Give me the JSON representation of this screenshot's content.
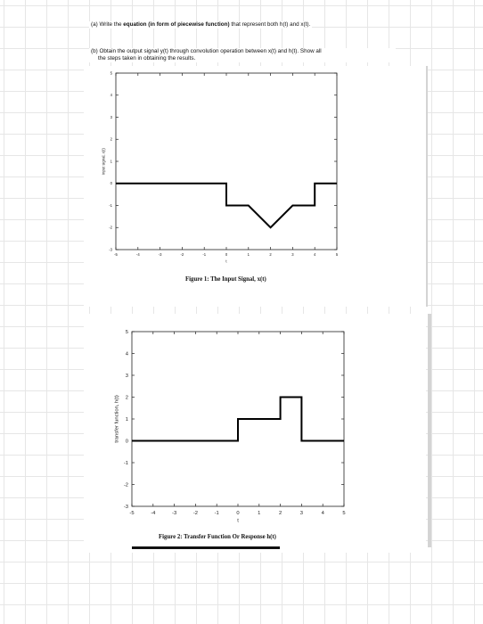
{
  "questions": {
    "a": {
      "prefix": "(a) Write the ",
      "bold": "equation (in form of piecewise function)",
      "suffix": " that represent both h(t) and x(t)."
    },
    "b": {
      "line1": "(b) Obtain the output signal y(t) through convolution operation between x(t) and h(t). Show all",
      "line2": "the steps taken in obtaining the results."
    }
  },
  "chart_data": [
    {
      "type": "line",
      "title": "Figure 1: The Input Signal, x(t)",
      "xlabel": "t",
      "ylabel": "input signal, x(t)",
      "xlim": [
        -5,
        5
      ],
      "ylim": [
        -3,
        5
      ],
      "xticks": [
        "-5",
        "-4",
        "-3",
        "-2",
        "-1",
        "0",
        "1",
        "2",
        "3",
        "4",
        "5"
      ],
      "yticks": [
        "-3",
        "-2",
        "-1",
        "0",
        "1",
        "2",
        "3",
        "4",
        "5"
      ],
      "series": [
        {
          "x": [
            -5,
            0,
            0,
            1,
            2,
            3,
            4,
            4,
            5
          ],
          "y": [
            0,
            0,
            -1,
            -1,
            -2,
            -1,
            -1,
            0,
            0
          ]
        }
      ]
    },
    {
      "type": "line",
      "title": "Figure 2: Transfer Function Or Response h(t)",
      "xlabel": "t",
      "ylabel": "transfer function, h(t)",
      "xlim": [
        -5,
        5
      ],
      "ylim": [
        -3,
        5
      ],
      "xticks": [
        "-5",
        "-4",
        "-3",
        "-2",
        "-1",
        "0",
        "1",
        "2",
        "3",
        "4",
        "5"
      ],
      "yticks": [
        "-3",
        "-2",
        "-1",
        "0",
        "1",
        "2",
        "3",
        "4",
        "5"
      ],
      "series": [
        {
          "x": [
            -5,
            0,
            0,
            2,
            2,
            3,
            3,
            5
          ],
          "y": [
            0,
            0,
            1,
            1,
            2,
            2,
            0,
            0
          ]
        }
      ]
    }
  ]
}
